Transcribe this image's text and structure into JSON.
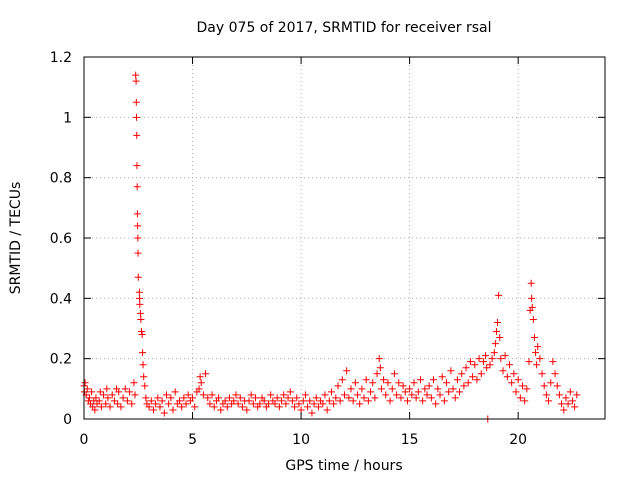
{
  "chart_data": {
    "type": "scatter",
    "title": "Day 075 of 2017, SRMTID for receiver rsal",
    "xlabel": "GPS time / hours",
    "ylabel": "SRMTID / TECUs",
    "xlim": [
      0,
      24
    ],
    "ylim": [
      0,
      1.2
    ],
    "xticks": [
      0,
      5,
      10,
      15,
      20
    ],
    "yticks": [
      0,
      0.2,
      0.4,
      0.6,
      0.8,
      1,
      1.2
    ],
    "grid": true,
    "marker": "+",
    "series": [
      {
        "name": "SRMTID",
        "color": "#ff0000",
        "points": [
          [
            0.0,
            0.11
          ],
          [
            0.02,
            0.09
          ],
          [
            0.05,
            0.12
          ],
          [
            0.1,
            0.08
          ],
          [
            0.15,
            0.1
          ],
          [
            0.2,
            0.06
          ],
          [
            0.25,
            0.07
          ],
          [
            0.3,
            0.05
          ],
          [
            0.35,
            0.09
          ],
          [
            0.4,
            0.04
          ],
          [
            0.45,
            0.06
          ],
          [
            0.5,
            0.03
          ],
          [
            0.55,
            0.07
          ],
          [
            0.6,
            0.05
          ],
          [
            0.7,
            0.06
          ],
          [
            0.75,
            0.09
          ],
          [
            0.8,
            0.04
          ],
          [
            0.9,
            0.08
          ],
          [
            1.0,
            0.05
          ],
          [
            1.05,
            0.1
          ],
          [
            1.1,
            0.07
          ],
          [
            1.2,
            0.04
          ],
          [
            1.3,
            0.08
          ],
          [
            1.4,
            0.06
          ],
          [
            1.5,
            0.1
          ],
          [
            1.55,
            0.05
          ],
          [
            1.6,
            0.09
          ],
          [
            1.7,
            0.04
          ],
          [
            1.8,
            0.07
          ],
          [
            1.9,
            0.1
          ],
          [
            2.0,
            0.06
          ],
          [
            2.1,
            0.09
          ],
          [
            2.2,
            0.05
          ],
          [
            2.3,
            0.12
          ],
          [
            2.35,
            0.08
          ],
          [
            2.38,
            1.14
          ],
          [
            2.4,
            1.12
          ],
          [
            2.41,
            1.05
          ],
          [
            2.42,
            1.0
          ],
          [
            2.43,
            0.94
          ],
          [
            2.44,
            0.84
          ],
          [
            2.45,
            0.77
          ],
          [
            2.46,
            0.68
          ],
          [
            2.47,
            0.64
          ],
          [
            2.48,
            0.6
          ],
          [
            2.49,
            0.55
          ],
          [
            2.5,
            0.47
          ],
          [
            2.55,
            0.42
          ],
          [
            2.56,
            0.4
          ],
          [
            2.57,
            0.38
          ],
          [
            2.6,
            0.35
          ],
          [
            2.62,
            0.33
          ],
          [
            2.65,
            0.29
          ],
          [
            2.68,
            0.28
          ],
          [
            2.7,
            0.22
          ],
          [
            2.72,
            0.18
          ],
          [
            2.75,
            0.14
          ],
          [
            2.8,
            0.11
          ],
          [
            2.85,
            0.07
          ],
          [
            2.9,
            0.05
          ],
          [
            3.0,
            0.04
          ],
          [
            3.1,
            0.06
          ],
          [
            3.2,
            0.03
          ],
          [
            3.3,
            0.05
          ],
          [
            3.4,
            0.07
          ],
          [
            3.5,
            0.04
          ],
          [
            3.6,
            0.06
          ],
          [
            3.7,
            0.02
          ],
          [
            3.8,
            0.08
          ],
          [
            3.9,
            0.05
          ],
          [
            4.0,
            0.07
          ],
          [
            4.1,
            0.03
          ],
          [
            4.2,
            0.09
          ],
          [
            4.3,
            0.05
          ],
          [
            4.4,
            0.06
          ],
          [
            4.5,
            0.04
          ],
          [
            4.6,
            0.07
          ],
          [
            4.7,
            0.05
          ],
          [
            4.8,
            0.08
          ],
          [
            4.9,
            0.06
          ],
          [
            5.0,
            0.07
          ],
          [
            5.1,
            0.04
          ],
          [
            5.2,
            0.09
          ],
          [
            5.3,
            0.1
          ],
          [
            5.35,
            0.14
          ],
          [
            5.4,
            0.12
          ],
          [
            5.5,
            0.08
          ],
          [
            5.6,
            0.15
          ],
          [
            5.7,
            0.07
          ],
          [
            5.8,
            0.05
          ],
          [
            5.9,
            0.08
          ],
          [
            6.0,
            0.04
          ],
          [
            6.1,
            0.06
          ],
          [
            6.2,
            0.07
          ],
          [
            6.3,
            0.03
          ],
          [
            6.4,
            0.05
          ],
          [
            6.5,
            0.06
          ],
          [
            6.6,
            0.04
          ],
          [
            6.7,
            0.07
          ],
          [
            6.8,
            0.05
          ],
          [
            6.9,
            0.06
          ],
          [
            7.0,
            0.08
          ],
          [
            7.1,
            0.05
          ],
          [
            7.2,
            0.07
          ],
          [
            7.3,
            0.04
          ],
          [
            7.4,
            0.06
          ],
          [
            7.5,
            0.03
          ],
          [
            7.6,
            0.06
          ],
          [
            7.7,
            0.08
          ],
          [
            7.8,
            0.05
          ],
          [
            7.9,
            0.07
          ],
          [
            8.0,
            0.04
          ],
          [
            8.1,
            0.05
          ],
          [
            8.2,
            0.07
          ],
          [
            8.3,
            0.06
          ],
          [
            8.4,
            0.04
          ],
          [
            8.5,
            0.05
          ],
          [
            8.6,
            0.08
          ],
          [
            8.7,
            0.06
          ],
          [
            8.8,
            0.05
          ],
          [
            8.9,
            0.07
          ],
          [
            9.0,
            0.04
          ],
          [
            9.1,
            0.06
          ],
          [
            9.2,
            0.08
          ],
          [
            9.3,
            0.05
          ],
          [
            9.4,
            0.07
          ],
          [
            9.5,
            0.09
          ],
          [
            9.6,
            0.06
          ],
          [
            9.7,
            0.04
          ],
          [
            9.8,
            0.07
          ],
          [
            9.9,
            0.05
          ],
          [
            10.0,
            0.03
          ],
          [
            10.1,
            0.06
          ],
          [
            10.2,
            0.08
          ],
          [
            10.3,
            0.04
          ],
          [
            10.4,
            0.06
          ],
          [
            10.5,
            0.02
          ],
          [
            10.6,
            0.05
          ],
          [
            10.7,
            0.07
          ],
          [
            10.8,
            0.04
          ],
          [
            10.9,
            0.06
          ],
          [
            11.0,
            0.05
          ],
          [
            11.1,
            0.08
          ],
          [
            11.2,
            0.03
          ],
          [
            11.3,
            0.06
          ],
          [
            11.4,
            0.09
          ],
          [
            11.5,
            0.05
          ],
          [
            11.6,
            0.07
          ],
          [
            11.7,
            0.11
          ],
          [
            11.8,
            0.06
          ],
          [
            11.9,
            0.13
          ],
          [
            12.0,
            0.08
          ],
          [
            12.1,
            0.16
          ],
          [
            12.2,
            0.07
          ],
          [
            12.3,
            0.1
          ],
          [
            12.4,
            0.06
          ],
          [
            12.5,
            0.12
          ],
          [
            12.6,
            0.08
          ],
          [
            12.7,
            0.05
          ],
          [
            12.8,
            0.1
          ],
          [
            12.9,
            0.07
          ],
          [
            13.0,
            0.13
          ],
          [
            13.1,
            0.06
          ],
          [
            13.2,
            0.09
          ],
          [
            13.3,
            0.12
          ],
          [
            13.4,
            0.07
          ],
          [
            13.5,
            0.15
          ],
          [
            13.6,
            0.2
          ],
          [
            13.65,
            0.17
          ],
          [
            13.7,
            0.1
          ],
          [
            13.8,
            0.13
          ],
          [
            13.9,
            0.08
          ],
          [
            14.0,
            0.12
          ],
          [
            14.1,
            0.06
          ],
          [
            14.2,
            0.1
          ],
          [
            14.3,
            0.15
          ],
          [
            14.4,
            0.08
          ],
          [
            14.5,
            0.12
          ],
          [
            14.6,
            0.07
          ],
          [
            14.7,
            0.11
          ],
          [
            14.8,
            0.09
          ],
          [
            14.9,
            0.06
          ],
          [
            15.0,
            0.1
          ],
          [
            15.1,
            0.08
          ],
          [
            15.2,
            0.12
          ],
          [
            15.3,
            0.07
          ],
          [
            15.4,
            0.09
          ],
          [
            15.5,
            0.13
          ],
          [
            15.6,
            0.06
          ],
          [
            15.7,
            0.1
          ],
          [
            15.8,
            0.08
          ],
          [
            15.9,
            0.11
          ],
          [
            16.0,
            0.07
          ],
          [
            16.1,
            0.13
          ],
          [
            16.2,
            0.05
          ],
          [
            16.3,
            0.1
          ],
          [
            16.4,
            0.08
          ],
          [
            16.5,
            0.14
          ],
          [
            16.6,
            0.06
          ],
          [
            16.7,
            0.12
          ],
          [
            16.8,
            0.09
          ],
          [
            16.9,
            0.16
          ],
          [
            17.0,
            0.1
          ],
          [
            17.1,
            0.07
          ],
          [
            17.2,
            0.13
          ],
          [
            17.3,
            0.09
          ],
          [
            17.4,
            0.15
          ],
          [
            17.5,
            0.11
          ],
          [
            17.6,
            0.17
          ],
          [
            17.7,
            0.12
          ],
          [
            17.8,
            0.19
          ],
          [
            17.9,
            0.14
          ],
          [
            18.0,
            0.18
          ],
          [
            18.1,
            0.13
          ],
          [
            18.2,
            0.2
          ],
          [
            18.3,
            0.15
          ],
          [
            18.4,
            0.19
          ],
          [
            18.5,
            0.21
          ],
          [
            18.55,
            0.17
          ],
          [
            18.6,
            0.0
          ],
          [
            18.7,
            0.18
          ],
          [
            18.8,
            0.2
          ],
          [
            18.9,
            0.22
          ],
          [
            18.95,
            0.25
          ],
          [
            19.0,
            0.29
          ],
          [
            19.05,
            0.32
          ],
          [
            19.1,
            0.41
          ],
          [
            19.15,
            0.27
          ],
          [
            19.2,
            0.2
          ],
          [
            19.3,
            0.16
          ],
          [
            19.4,
            0.21
          ],
          [
            19.5,
            0.14
          ],
          [
            19.6,
            0.18
          ],
          [
            19.7,
            0.12
          ],
          [
            19.8,
            0.15
          ],
          [
            19.9,
            0.09
          ],
          [
            20.0,
            0.13
          ],
          [
            20.1,
            0.07
          ],
          [
            20.2,
            0.11
          ],
          [
            20.3,
            0.06
          ],
          [
            20.4,
            0.1
          ],
          [
            20.5,
            0.19
          ],
          [
            20.55,
            0.36
          ],
          [
            20.6,
            0.45
          ],
          [
            20.62,
            0.4
          ],
          [
            20.65,
            0.37
          ],
          [
            20.7,
            0.33
          ],
          [
            20.75,
            0.27
          ],
          [
            20.8,
            0.22
          ],
          [
            20.85,
            0.18
          ],
          [
            20.9,
            0.24
          ],
          [
            21.0,
            0.2
          ],
          [
            21.1,
            0.15
          ],
          [
            21.2,
            0.11
          ],
          [
            21.3,
            0.08
          ],
          [
            21.4,
            0.06
          ],
          [
            21.5,
            0.12
          ],
          [
            21.6,
            0.19
          ],
          [
            21.7,
            0.15
          ],
          [
            21.8,
            0.11
          ],
          [
            21.9,
            0.08
          ],
          [
            22.0,
            0.05
          ],
          [
            22.1,
            0.03
          ],
          [
            22.2,
            0.07
          ],
          [
            22.3,
            0.05
          ],
          [
            22.4,
            0.09
          ],
          [
            22.5,
            0.06
          ],
          [
            22.6,
            0.04
          ],
          [
            22.7,
            0.08
          ]
        ]
      }
    ]
  }
}
